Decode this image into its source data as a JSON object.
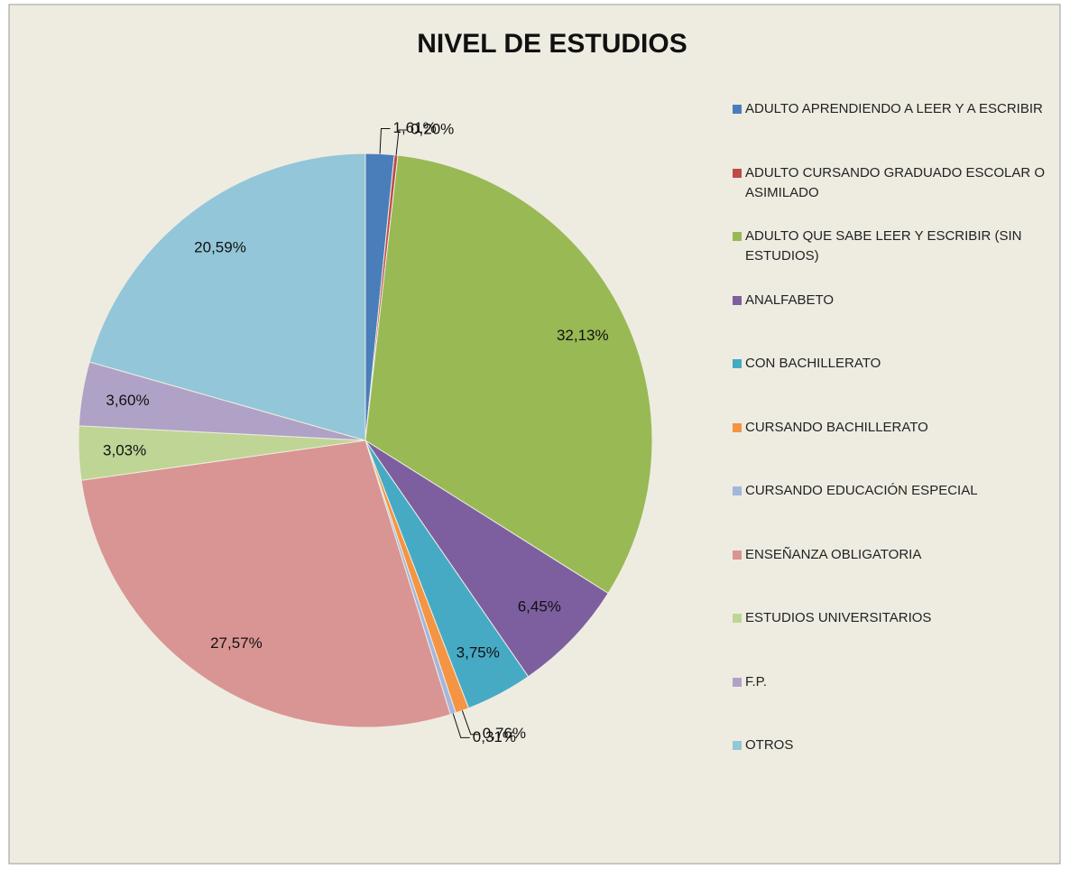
{
  "chart_data": {
    "type": "pie",
    "title": "NIVEL DE ESTUDIOS",
    "categories": [
      "ADULTO APRENDIENDO A LEER Y A ESCRIBIR",
      "ADULTO CURSANDO GRADUADO ESCOLAR O ASIMILADO",
      "ADULTO QUE SABE LEER Y ESCRIBIR (SIN ESTUDIOS)",
      "ANALFABETO",
      "CON BACHILLERATO",
      "CURSANDO BACHILLERATO",
      "CURSANDO EDUCACIÓN ESPECIAL",
      "ENSEÑANZA OBLIGATORIA",
      "ESTUDIOS UNIVERSITARIOS",
      "F.P.",
      "OTROS"
    ],
    "values": [
      1.61,
      0.2,
      32.13,
      6.45,
      3.75,
      0.76,
      0.31,
      27.57,
      3.03,
      3.6,
      20.59
    ],
    "value_labels": [
      "1,61%",
      "0,20%",
      "32,13%",
      "6,45%",
      "3,75%",
      "0,76%",
      "0,31%",
      "27,57%",
      "3,03%",
      "3,60%",
      "20,59%"
    ],
    "colors": [
      "#4a7ebb",
      "#be4b48",
      "#98b954",
      "#7d5fa0",
      "#46aac5",
      "#f59443",
      "#a3b6dd",
      "#d99593",
      "#bed596",
      "#b0a2c6",
      "#93c6d8"
    ],
    "legend": "right"
  }
}
